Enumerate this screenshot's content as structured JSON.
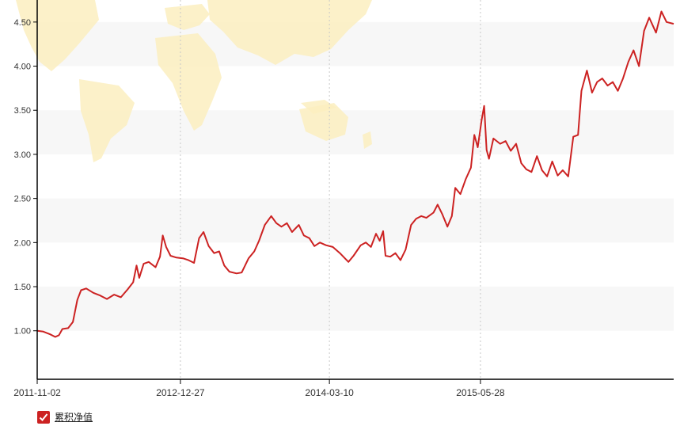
{
  "colors": {
    "series": "#cc2222",
    "band": "#f7f7f7",
    "axis": "#000000",
    "vgrid": "#c8c8c8",
    "map": "#fbeec0",
    "background": "#ffffff"
  },
  "legend": {
    "checked": true,
    "icon": "checkbox-checked-icon"
  },
  "chart_data": {
    "type": "line",
    "title": "",
    "xlabel": "",
    "ylabel": "",
    "background": "world-map-watermark",
    "grid": "alternating horizontal bands with dotted vertical gridlines",
    "legend_position": "bottom-left",
    "ylim": [
      0.45,
      4.75
    ],
    "xlim": [
      "2011-11-02",
      "2016-12-16"
    ],
    "y_ticks": [
      "1.00",
      "1.50",
      "2.00",
      "2.50",
      "3.00",
      "3.50",
      "4.00",
      "4.50"
    ],
    "x_ticks": [
      "2011-11-02",
      "2012-12-27",
      "2014-03-10",
      "2015-05-28"
    ],
    "series": [
      {
        "name": "累积净值",
        "color": "#cc2222",
        "points": [
          [
            "2011-11-02",
            1.0
          ],
          [
            "2011-11-20",
            0.99
          ],
          [
            "2011-12-10",
            0.96
          ],
          [
            "2011-12-25",
            0.93
          ],
          [
            "2012-01-05",
            0.95
          ],
          [
            "2012-01-15",
            1.02
          ],
          [
            "2012-02-01",
            1.03
          ],
          [
            "2012-02-15",
            1.1
          ],
          [
            "2012-02-28",
            1.35
          ],
          [
            "2012-03-10",
            1.46
          ],
          [
            "2012-03-25",
            1.48
          ],
          [
            "2012-04-15",
            1.43
          ],
          [
            "2012-05-05",
            1.4
          ],
          [
            "2012-05-25",
            1.36
          ],
          [
            "2012-06-15",
            1.41
          ],
          [
            "2012-07-05",
            1.38
          ],
          [
            "2012-07-25",
            1.47
          ],
          [
            "2012-08-10",
            1.55
          ],
          [
            "2012-08-20",
            1.74
          ],
          [
            "2012-08-28",
            1.6
          ],
          [
            "2012-09-10",
            1.76
          ],
          [
            "2012-09-25",
            1.78
          ],
          [
            "2012-10-15",
            1.72
          ],
          [
            "2012-10-28",
            1.84
          ],
          [
            "2012-11-05",
            2.08
          ],
          [
            "2012-11-15",
            1.95
          ],
          [
            "2012-11-28",
            1.85
          ],
          [
            "2012-12-15",
            1.83
          ],
          [
            "2013-01-05",
            1.82
          ],
          [
            "2013-01-20",
            1.8
          ],
          [
            "2013-02-05",
            1.77
          ],
          [
            "2013-02-20",
            2.05
          ],
          [
            "2013-03-05",
            2.12
          ],
          [
            "2013-03-20",
            1.96
          ],
          [
            "2013-04-05",
            1.88
          ],
          [
            "2013-04-20",
            1.9
          ],
          [
            "2013-05-05",
            1.74
          ],
          [
            "2013-05-20",
            1.67
          ],
          [
            "2013-06-10",
            1.65
          ],
          [
            "2013-06-25",
            1.66
          ],
          [
            "2013-07-15",
            1.82
          ],
          [
            "2013-08-01",
            1.9
          ],
          [
            "2013-08-15",
            2.02
          ],
          [
            "2013-09-01",
            2.2
          ],
          [
            "2013-09-20",
            2.3
          ],
          [
            "2013-10-05",
            2.22
          ],
          [
            "2013-10-20",
            2.18
          ],
          [
            "2013-11-05",
            2.22
          ],
          [
            "2013-11-20",
            2.12
          ],
          [
            "2013-12-10",
            2.2
          ],
          [
            "2013-12-25",
            2.08
          ],
          [
            "2014-01-10",
            2.05
          ],
          [
            "2014-01-25",
            1.96
          ],
          [
            "2014-02-10",
            2.0
          ],
          [
            "2014-02-28",
            1.97
          ],
          [
            "2014-03-20",
            1.95
          ],
          [
            "2014-04-10",
            1.88
          ],
          [
            "2014-04-25",
            1.82
          ],
          [
            "2014-05-05",
            1.78
          ],
          [
            "2014-05-20",
            1.85
          ],
          [
            "2014-06-10",
            1.97
          ],
          [
            "2014-06-25",
            2.0
          ],
          [
            "2014-07-10",
            1.95
          ],
          [
            "2014-07-25",
            2.1
          ],
          [
            "2014-08-05",
            2.02
          ],
          [
            "2014-08-15",
            2.13
          ],
          [
            "2014-08-22",
            1.85
          ],
          [
            "2014-09-05",
            1.84
          ],
          [
            "2014-09-20",
            1.88
          ],
          [
            "2014-10-05",
            1.8
          ],
          [
            "2014-10-20",
            1.92
          ],
          [
            "2014-11-05",
            2.2
          ],
          [
            "2014-11-20",
            2.27
          ],
          [
            "2014-12-05",
            2.3
          ],
          [
            "2014-12-20",
            2.28
          ],
          [
            "2015-01-10",
            2.34
          ],
          [
            "2015-01-22",
            2.43
          ],
          [
            "2015-02-05",
            2.32
          ],
          [
            "2015-02-20",
            2.18
          ],
          [
            "2015-03-05",
            2.3
          ],
          [
            "2015-03-15",
            2.62
          ],
          [
            "2015-03-30",
            2.55
          ],
          [
            "2015-04-15",
            2.72
          ],
          [
            "2015-04-30",
            2.85
          ],
          [
            "2015-05-10",
            3.22
          ],
          [
            "2015-05-20",
            3.08
          ],
          [
            "2015-06-01",
            3.4
          ],
          [
            "2015-06-08",
            3.55
          ],
          [
            "2015-06-15",
            3.05
          ],
          [
            "2015-06-22",
            2.95
          ],
          [
            "2015-07-05",
            3.18
          ],
          [
            "2015-07-25",
            3.12
          ],
          [
            "2015-08-10",
            3.15
          ],
          [
            "2015-08-25",
            3.04
          ],
          [
            "2015-09-10",
            3.12
          ],
          [
            "2015-09-25",
            2.9
          ],
          [
            "2015-10-10",
            2.83
          ],
          [
            "2015-10-25",
            2.8
          ],
          [
            "2015-11-10",
            2.98
          ],
          [
            "2015-11-25",
            2.82
          ],
          [
            "2015-12-10",
            2.75
          ],
          [
            "2015-12-25",
            2.92
          ],
          [
            "2016-01-10",
            2.76
          ],
          [
            "2016-01-25",
            2.82
          ],
          [
            "2016-02-10",
            2.75
          ],
          [
            "2016-02-25",
            3.2
          ],
          [
            "2016-03-10",
            3.22
          ],
          [
            "2016-03-20",
            3.72
          ],
          [
            "2016-04-05",
            3.95
          ],
          [
            "2016-04-20",
            3.7
          ],
          [
            "2016-05-05",
            3.82
          ],
          [
            "2016-05-20",
            3.86
          ],
          [
            "2016-06-05",
            3.78
          ],
          [
            "2016-06-20",
            3.82
          ],
          [
            "2016-07-05",
            3.72
          ],
          [
            "2016-07-20",
            3.86
          ],
          [
            "2016-08-05",
            4.05
          ],
          [
            "2016-08-20",
            4.18
          ],
          [
            "2016-09-05",
            4.0
          ],
          [
            "2016-09-20",
            4.4
          ],
          [
            "2016-10-05",
            4.55
          ],
          [
            "2016-10-25",
            4.38
          ],
          [
            "2016-11-10",
            4.62
          ],
          [
            "2016-11-25",
            4.5
          ],
          [
            "2016-12-16",
            4.48
          ]
        ]
      }
    ]
  }
}
